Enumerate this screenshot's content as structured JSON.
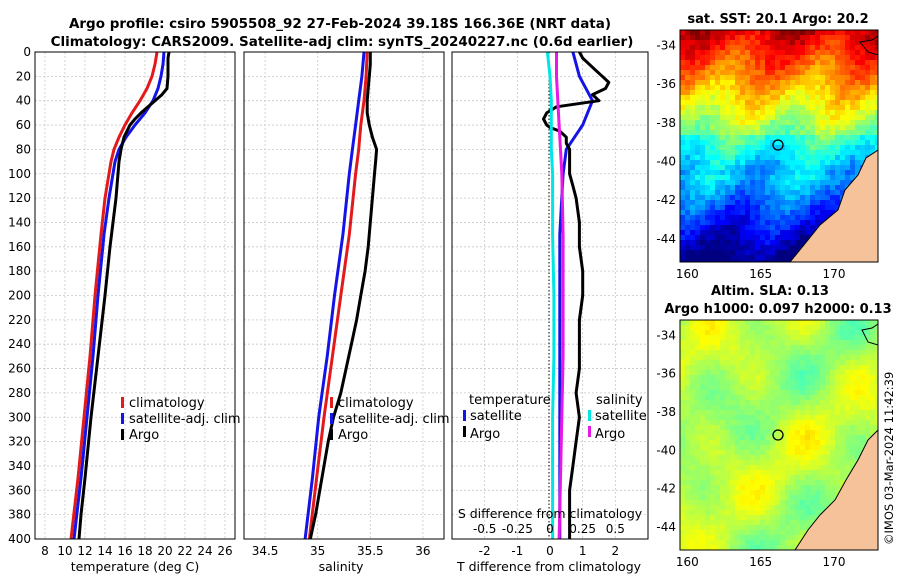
{
  "figure": {
    "title_line1": "Argo profile: csiro 5905508_92 27-Feb-2024 39.18S 166.36E (NRT data)",
    "title_line2": "Climatology: CARS2009. Satellite-adj clim: synTS_20240227.nc (0.6d earlier)",
    "copyright": "©IMOS 03-Mar-2024 11:42:39"
  },
  "colors": {
    "climatology": "#e31a1c",
    "satellite": "#1414e6",
    "argo": "#000000",
    "salinity_sat": "#00e5e5",
    "salinity_argo": "#e619e6",
    "grid": "#c8c8c8",
    "land": "#f5c29a"
  },
  "chart_data": [
    {
      "type": "line",
      "id": "temperature",
      "xlabel": "temperature (deg C)",
      "ylabel": "",
      "xlim": [
        7,
        27
      ],
      "ylim": [
        400,
        0
      ],
      "xticks": [
        8,
        10,
        12,
        14,
        16,
        18,
        20,
        22,
        24,
        26
      ],
      "yticks": [
        0,
        20,
        40,
        60,
        80,
        100,
        120,
        140,
        160,
        180,
        200,
        220,
        240,
        260,
        280,
        300,
        320,
        340,
        360,
        380,
        400
      ],
      "grid": true,
      "legend": {
        "position": "middle-right",
        "entries": [
          "climatology",
          "satellite-adj. clim",
          "Argo"
        ]
      },
      "series": [
        {
          "name": "climatology",
          "color_key": "climatology",
          "depth": [
            0,
            10,
            20,
            30,
            40,
            50,
            60,
            70,
            80,
            90,
            100,
            120,
            150,
            200,
            250,
            300,
            350,
            400
          ],
          "values": [
            19.2,
            19.0,
            18.7,
            18.2,
            17.5,
            16.7,
            16.0,
            15.4,
            14.9,
            14.6,
            14.4,
            14.0,
            13.6,
            13.0,
            12.5,
            11.9,
            11.3,
            10.6
          ]
        },
        {
          "name": "satellite-adj. clim",
          "color_key": "satellite",
          "depth": [
            0,
            10,
            20,
            30,
            40,
            50,
            60,
            70,
            80,
            90,
            100,
            120,
            150,
            200,
            250,
            300,
            350,
            400
          ],
          "values": [
            19.9,
            19.8,
            19.6,
            19.3,
            18.8,
            18.0,
            17.0,
            16.1,
            15.4,
            15.0,
            14.8,
            14.4,
            13.9,
            13.3,
            12.8,
            12.2,
            11.6,
            10.9
          ]
        },
        {
          "name": "Argo",
          "color_key": "argo",
          "depth": [
            0,
            5,
            10,
            20,
            30,
            35,
            40,
            45,
            50,
            55,
            60,
            70,
            80,
            90,
            100,
            110,
            120,
            140,
            160,
            200,
            250,
            300,
            350,
            380,
            400
          ],
          "values": [
            20.4,
            20.3,
            20.3,
            20.3,
            20.2,
            19.7,
            19.0,
            18.3,
            17.6,
            17.0,
            16.5,
            15.9,
            15.6,
            15.4,
            15.3,
            15.2,
            15.1,
            14.8,
            14.5,
            14.0,
            13.3,
            12.6,
            12.0,
            11.6,
            11.4
          ]
        }
      ]
    },
    {
      "type": "line",
      "id": "salinity",
      "xlabel": "salinity",
      "ylabel": "",
      "xlim": [
        34.3,
        36.2
      ],
      "ylim": [
        400,
        0
      ],
      "xticks": [
        34.5,
        35,
        35.5,
        36
      ],
      "xtick_labels": [
        "34.5",
        "35",
        "35.5",
        "36"
      ],
      "grid": true,
      "legend": {
        "position": "middle-right",
        "entries": [
          "climatology",
          "satellite-adj. clim",
          "Argo"
        ]
      },
      "series": [
        {
          "name": "climatology",
          "color_key": "climatology",
          "depth": [
            0,
            20,
            40,
            60,
            80,
            100,
            150,
            200,
            250,
            300,
            350,
            400
          ],
          "values": [
            35.47,
            35.46,
            35.44,
            35.41,
            35.39,
            35.36,
            35.3,
            35.22,
            35.14,
            35.06,
            34.99,
            34.92
          ]
        },
        {
          "name": "satellite-adj. clim",
          "color_key": "satellite",
          "depth": [
            0,
            20,
            40,
            60,
            80,
            100,
            150,
            200,
            250,
            300,
            350,
            400
          ],
          "values": [
            35.44,
            35.42,
            35.39,
            35.36,
            35.33,
            35.3,
            35.24,
            35.16,
            35.09,
            35.01,
            34.95,
            34.88
          ]
        },
        {
          "name": "Argo",
          "color_key": "argo",
          "depth": [
            0,
            10,
            20,
            30,
            40,
            50,
            60,
            70,
            80,
            90,
            100,
            120,
            140,
            160,
            180,
            200,
            220,
            240,
            260,
            280,
            300,
            320,
            340,
            360,
            380,
            400
          ],
          "values": [
            35.5,
            35.5,
            35.49,
            35.48,
            35.47,
            35.47,
            35.49,
            35.52,
            35.56,
            35.55,
            35.54,
            35.52,
            35.5,
            35.48,
            35.45,
            35.41,
            35.37,
            35.32,
            35.27,
            35.22,
            35.15,
            35.1,
            35.06,
            35.02,
            34.98,
            34.93
          ]
        }
      ]
    },
    {
      "type": "line",
      "id": "differences",
      "xlabel": "T difference from climatology",
      "xlabel_top": "S difference from climatology",
      "xlim": [
        -3,
        3
      ],
      "ylim": [
        400,
        0
      ],
      "xticks": [
        -2,
        -1,
        0,
        1,
        2
      ],
      "xtick_labels": [
        "-2",
        "-1",
        "0",
        "1",
        "2"
      ],
      "xticks_S": [
        -0.5,
        -0.25,
        0,
        0.25,
        0.5
      ],
      "xtick_labels_S": [
        "-0.5",
        "-0.25",
        "0",
        "0.25",
        "0.5"
      ],
      "s_to_t_scale": 4,
      "grid": true,
      "legend": {
        "temperature_title": "temperature",
        "salinity_title": "salinity",
        "temperature_entries": [
          "satellite",
          "Argo"
        ],
        "salinity_entries": [
          "satellite",
          "Argo"
        ]
      },
      "series": [
        {
          "name": "T satellite",
          "color_key": "satellite",
          "depth": [
            0,
            20,
            40,
            60,
            80,
            100,
            150,
            200,
            250,
            300,
            350,
            400
          ],
          "values": [
            0.7,
            0.9,
            1.3,
            1.0,
            0.5,
            0.4,
            0.3,
            0.3,
            0.3,
            0.3,
            0.3,
            0.3
          ]
        },
        {
          "name": "T Argo",
          "color_key": "argo",
          "depth": [
            0,
            5,
            10,
            15,
            20,
            25,
            30,
            35,
            40,
            45,
            50,
            55,
            60,
            62,
            65,
            70,
            75,
            80,
            90,
            100,
            110,
            120,
            140,
            160,
            180,
            200,
            220,
            240,
            260,
            280,
            300,
            320,
            340,
            360,
            380,
            400
          ],
          "values": [
            0.9,
            1.0,
            1.2,
            1.4,
            1.6,
            1.8,
            1.7,
            1.3,
            1.5,
            0.2,
            -0.1,
            -0.2,
            -0.1,
            0.0,
            0.3,
            0.5,
            0.5,
            0.6,
            0.6,
            0.6,
            0.7,
            0.8,
            0.9,
            0.9,
            1.0,
            1.0,
            0.9,
            0.9,
            0.9,
            0.8,
            0.9,
            0.8,
            0.7,
            0.6,
            0.6,
            0.6
          ]
        },
        {
          "name": "S satellite",
          "color_key": "salinity_sat",
          "depth": [
            0,
            20,
            40,
            60,
            80,
            100,
            150,
            200,
            250,
            300,
            350,
            400
          ],
          "values": [
            -0.02,
            0.0,
            0.01,
            0.01,
            0.01,
            0.02,
            0.02,
            0.03,
            0.03,
            0.02,
            0.02,
            0.02
          ]
        },
        {
          "name": "S Argo",
          "color_key": "salinity_argo",
          "depth": [
            0,
            20,
            40,
            60,
            80,
            100,
            150,
            200,
            250,
            300,
            350,
            400
          ],
          "values": [
            0.05,
            0.05,
            0.06,
            0.07,
            0.08,
            0.09,
            0.1,
            0.1,
            0.1,
            0.09,
            0.08,
            0.07
          ]
        }
      ]
    },
    {
      "type": "heatmap",
      "id": "sst_map",
      "title": "sat. SST: 20.1 Argo: 20.2",
      "xticks": [
        160,
        165,
        170
      ],
      "yticks": [
        -34,
        -36,
        -38,
        -40,
        -42,
        -44
      ],
      "xlim": [
        159.5,
        173
      ],
      "ylim": [
        -45.2,
        -33.2
      ],
      "marker": {
        "lon": 166.36,
        "lat": -39.18
      }
    },
    {
      "type": "heatmap",
      "id": "sla_map",
      "title_line1": "Altim. SLA: 0.13",
      "title_line2": "Argo h1000: 0.097 h2000: 0.13",
      "xticks": [
        160,
        165,
        170
      ],
      "yticks": [
        -34,
        -36,
        -38,
        -40,
        -42,
        -44
      ],
      "xlim": [
        159.5,
        173
      ],
      "ylim": [
        -45.2,
        -33.2
      ],
      "marker": {
        "lon": 166.36,
        "lat": -39.18
      }
    }
  ]
}
